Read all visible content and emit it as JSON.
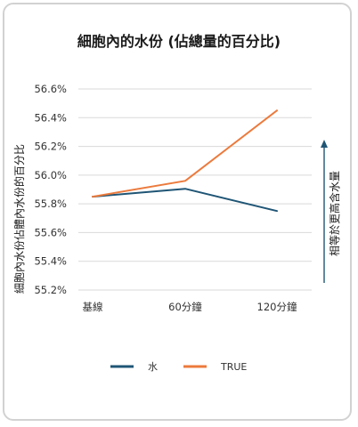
{
  "chart_data": {
    "type": "line",
    "title": "細胞內的水份 (佔總量的百分比)",
    "ylabel": "細胞內水份佔體內水份的百分比",
    "annotation": "相等於更高含水量",
    "categories": [
      "基線",
      "60分鐘",
      "120分鐘"
    ],
    "ylim": [
      55.2,
      56.6
    ],
    "yticks": [
      "55.2%",
      "55.4%",
      "55.6%",
      "55.8%",
      "56.0%",
      "56.2%",
      "56.4%",
      "56.6%"
    ],
    "ytick_values": [
      55.2,
      55.4,
      55.6,
      55.8,
      56.0,
      56.2,
      56.4,
      56.6
    ],
    "grid": true,
    "legend_position": "bottom",
    "series": [
      {
        "name": "水",
        "color": "#1f5575",
        "values": [
          55.85,
          55.905,
          55.75
        ]
      },
      {
        "name": "TRUE",
        "color": "#ec7a3c",
        "values": [
          55.85,
          55.96,
          56.45
        ]
      }
    ]
  }
}
